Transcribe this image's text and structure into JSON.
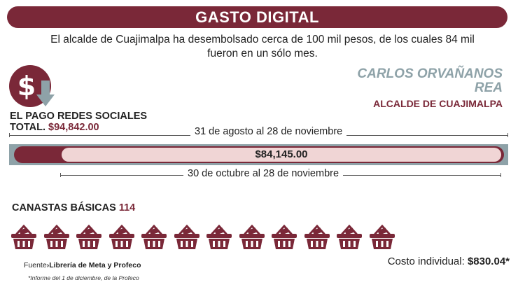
{
  "header": {
    "title": "GASTO DIGITAL"
  },
  "intro": {
    "text": "El alcalde de Cuajimalpa ha desembolsado cerca de 100 mil pesos, de los cuales 84 mil fueron en un sólo mes."
  },
  "payment": {
    "icon": "dollar-down-icon",
    "label_line1": "EL PAGO REDES SOCIALES",
    "total_label": "TOTAL.",
    "total_value": "$94,842.00"
  },
  "person": {
    "name": "CARLOS ORVAÑANOS REA",
    "role": "ALCALDE DE CUAJIMALPA"
  },
  "ranges": {
    "full_period": "31 de agosto al 28 de noviembre",
    "month_period": "30 de octubre  al 28 de noviembre"
  },
  "bar": {
    "month_value": "$84,145.00",
    "month_amount": 84145.0,
    "total_amount": 94842.0
  },
  "canastas": {
    "label": "CANASTAS BÁSICAS",
    "count": "114",
    "icon": "basket-icon",
    "icons_shown": 12
  },
  "source": {
    "prefix": "Fuente",
    "text": "Librería de Meta y Profeco",
    "note": "*Informe del 1 de diciembre, de la Profeco"
  },
  "cost": {
    "label": "Costo individual:",
    "value": "$830.04*"
  },
  "colors": {
    "accent": "#7a2838",
    "secondary": "#8ea2a8",
    "bar_fill_light": "#f0d5d5"
  }
}
